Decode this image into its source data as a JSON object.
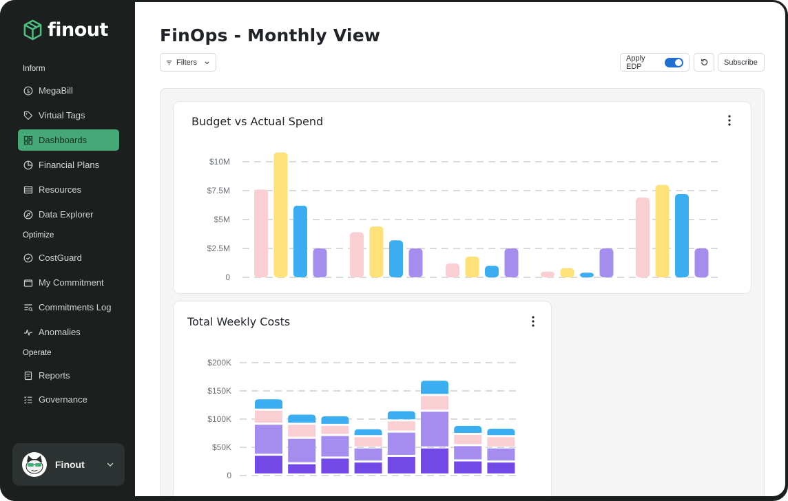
{
  "app": {
    "brand": "finout",
    "page_title": "FinOps - Monthly View"
  },
  "sidebar": {
    "sections": [
      {
        "label": "Inform",
        "items": [
          "MegaBill",
          "Virtual Tags",
          "Dashboards",
          "Financial Plans",
          "Resources",
          "Data Explorer"
        ]
      },
      {
        "label": "Optimize",
        "items": [
          "CostGuard",
          "My Commitment",
          "Commitments Log",
          "Anomalies"
        ]
      },
      {
        "label": "Operate",
        "items": [
          "Reports",
          "Governance"
        ]
      }
    ],
    "labels": {
      "inform": "Inform",
      "optimize": "Optimize",
      "operate": "Operate",
      "megabill": "MegaBill",
      "virtual_tags": "Virtual Tags",
      "dashboards": "Dashboards",
      "financial_plans": "Financial Plans",
      "resources": "Resources",
      "data_explorer": "Data Explorer",
      "costguard": "CostGuard",
      "my_commitment": "My Commitment",
      "commitments_log": "Commitments Log",
      "anomalies": "Anomalies",
      "reports": "Reports",
      "governance": "Governance"
    },
    "active_item": "Dashboards",
    "user": {
      "name": "Finout"
    }
  },
  "toolbar": {
    "filters_label": "Filters",
    "apply_edp_label": "Apply EDP",
    "apply_edp_enabled": true,
    "subscribe_label": "Subscribe"
  },
  "colors": {
    "accent": "#47a877",
    "pink": "#f9cfd3",
    "yellow": "#fde27a",
    "blue": "#3aaef0",
    "purple": "#a58cef",
    "dark_purple": "#7248e6"
  },
  "chart_data": [
    {
      "type": "bar",
      "title": "Budget vs Actual Spend",
      "yticks": [
        "0",
        "$2.5M",
        "$5M",
        "$7.5M",
        "$10M"
      ],
      "ylim": [
        0,
        10000000
      ],
      "groups": 5,
      "series": [
        {
          "color": "pink",
          "values": [
            7600000,
            3900000,
            1200000,
            500000,
            6900000
          ]
        },
        {
          "color": "yellow",
          "values": [
            10800000,
            4400000,
            1800000,
            800000,
            8000000
          ]
        },
        {
          "color": "blue",
          "values": [
            6200000,
            3200000,
            1000000,
            400000,
            7200000
          ]
        },
        {
          "color": "purple",
          "values": [
            2500000,
            2500000,
            2500000,
            2500000,
            2500000
          ]
        }
      ],
      "grid": true
    },
    {
      "type": "bar",
      "stacked": true,
      "title": "Total Weekly Costs",
      "yticks": [
        "0",
        "$50K",
        "$100K",
        "$150K",
        "$200K"
      ],
      "ylim": [
        0,
        200000
      ],
      "categories": 8,
      "series": [
        {
          "color": "dark_purple",
          "values": [
            35000,
            20000,
            30000,
            23000,
            33000,
            48000,
            25000,
            23000
          ]
        },
        {
          "color": "purple",
          "values": [
            55000,
            45000,
            40000,
            25000,
            43000,
            65000,
            27000,
            25000
          ]
        },
        {
          "color": "pink",
          "values": [
            25000,
            25000,
            18000,
            20000,
            20000,
            28000,
            20000,
            20000
          ]
        },
        {
          "color": "blue",
          "values": [
            20000,
            18000,
            17000,
            14000,
            18000,
            27000,
            16000,
            15000
          ]
        }
      ],
      "grid": true
    }
  ]
}
